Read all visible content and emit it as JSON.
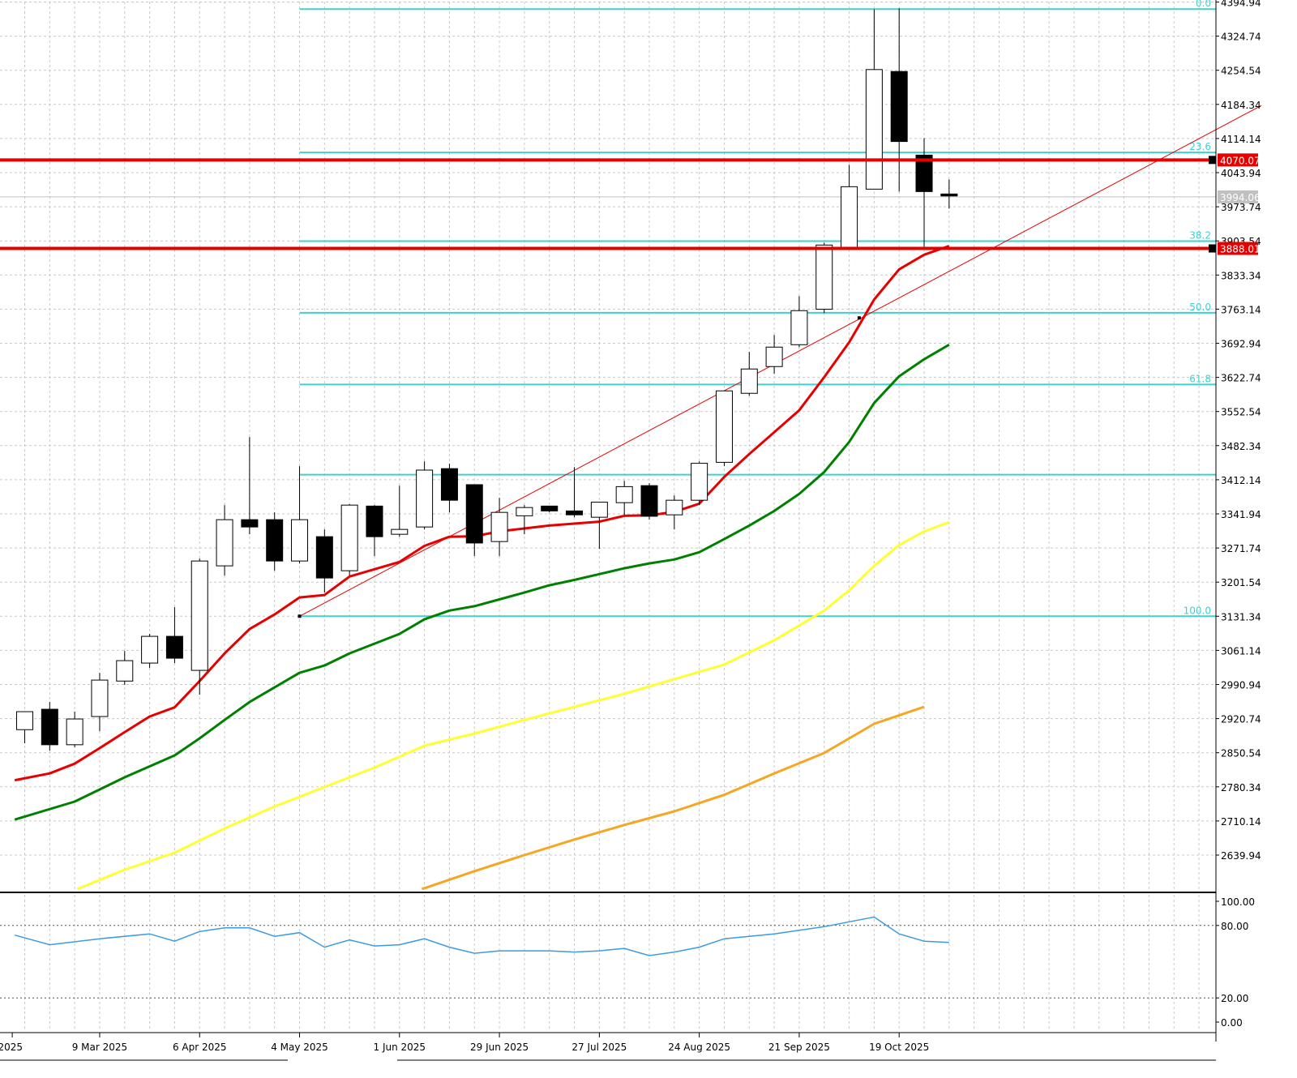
{
  "chart_data": [
    {
      "type": "candlestick",
      "interval": "weekly",
      "y_axis": {
        "range": [
          2569.74,
          4394.94
        ],
        "tick_labels": [
          "4394.94",
          "4324.74",
          "4254.54",
          "4184.34",
          "4114.14",
          "4043.94",
          "3973.74",
          "3903.54",
          "3833.34",
          "3763.14",
          "3692.94",
          "3622.74",
          "3552.54",
          "3482.34",
          "3412.14",
          "3341.94",
          "3271.74",
          "3201.54",
          "3131.34",
          "3061.14",
          "2990.94",
          "2920.74",
          "2850.54",
          "2780.34",
          "2710.14",
          "2639.94"
        ]
      },
      "x_axis": {
        "tick_labels": [
          "2025",
          "9 Mar 2025",
          "6 Apr 2025",
          "4 May 2025",
          "1 Jun 2025",
          "29 Jun 2025",
          "27 Jul 2025",
          "24 Aug 2025",
          "21 Sep 2025",
          "19 Oct 2025"
        ]
      },
      "grid": true,
      "price_labels": [
        {
          "text": "4070.07",
          "value": 4070.07,
          "color": "#e60000"
        },
        {
          "text": "3994.06",
          "value": 3994.06,
          "color": "#c0c0c0"
        },
        {
          "text": "3888.01",
          "value": 3888.01,
          "color": "#e60000"
        }
      ],
      "horizontal_levels": [
        {
          "value": 4070.07,
          "color": "#e60000"
        },
        {
          "value": 3888.01,
          "color": "#e60000"
        }
      ],
      "fibonacci": {
        "start": "4 May 2025",
        "color": "#3fd0d0",
        "levels": [
          {
            "label": "0.0",
            "value": 4380.4
          },
          {
            "label": "23.6",
            "value": 4085.5
          },
          {
            "label": "38.2",
            "value": 3903.1
          },
          {
            "label": "50.0",
            "value": 3755.6
          },
          {
            "label": "61.8",
            "value": 3608.2
          },
          {
            "label": "100.0",
            "value": 3131.4
          }
        ],
        "extra_level": {
          "value": 3422.6
        }
      },
      "trendline": {
        "x_start": 11,
        "y_start": 3131.4,
        "x_end": 49.5,
        "y_end": 4182.0,
        "color": "#e60000"
      },
      "candles": [
        {
          "x": 0,
          "open": 2898,
          "high": 2930,
          "low": 2870,
          "close": 2935
        },
        {
          "x": 1,
          "open": 2940,
          "high": 2955,
          "low": 2855,
          "close": 2867
        },
        {
          "x": 2,
          "open": 2867,
          "high": 2935,
          "low": 2862,
          "close": 2920
        },
        {
          "x": 3,
          "open": 2925,
          "high": 3015,
          "low": 2895,
          "close": 3000
        },
        {
          "x": 4,
          "open": 2998,
          "high": 3060,
          "low": 2990,
          "close": 3040
        },
        {
          "x": 5,
          "open": 3035,
          "high": 3095,
          "low": 3025,
          "close": 3090
        },
        {
          "x": 6,
          "open": 3090,
          "high": 3150,
          "low": 3035,
          "close": 3045
        },
        {
          "x": 7,
          "open": 3020,
          "high": 3250,
          "low": 2970,
          "close": 3245
        },
        {
          "x": 8,
          "open": 3235,
          "high": 3360,
          "low": 3215,
          "close": 3330
        },
        {
          "x": 9,
          "open": 3330,
          "high": 3500,
          "low": 3300,
          "close": 3315
        },
        {
          "x": 10,
          "open": 3330,
          "high": 3345,
          "low": 3225,
          "close": 3245
        },
        {
          "x": 11,
          "open": 3245,
          "high": 3440,
          "low": 3240,
          "close": 3330
        },
        {
          "x": 12,
          "open": 3295,
          "high": 3310,
          "low": 3180,
          "close": 3210
        },
        {
          "x": 13,
          "open": 3225,
          "high": 3362,
          "low": 3215,
          "close": 3360
        },
        {
          "x": 14,
          "open": 3358,
          "high": 3360,
          "low": 3255,
          "close": 3295
        },
        {
          "x": 15,
          "open": 3300,
          "high": 3400,
          "low": 3295,
          "close": 3310
        },
        {
          "x": 16,
          "open": 3315,
          "high": 3450,
          "low": 3310,
          "close": 3432
        },
        {
          "x": 17,
          "open": 3435,
          "high": 3445,
          "low": 3345,
          "close": 3370
        },
        {
          "x": 18,
          "open": 3402,
          "high": 3402,
          "low": 3255,
          "close": 3282
        },
        {
          "x": 19,
          "open": 3285,
          "high": 3375,
          "low": 3255,
          "close": 3345
        },
        {
          "x": 20,
          "open": 3338,
          "high": 3360,
          "low": 3300,
          "close": 3355
        },
        {
          "x": 21,
          "open": 3358,
          "high": 3358,
          "low": 3345,
          "close": 3348
        },
        {
          "x": 22,
          "open": 3348,
          "high": 3438,
          "low": 3335,
          "close": 3340
        },
        {
          "x": 23,
          "open": 3335,
          "high": 3367,
          "low": 3270,
          "close": 3366
        },
        {
          "x": 24,
          "open": 3365,
          "high": 3410,
          "low": 3340,
          "close": 3398
        },
        {
          "x": 25,
          "open": 3400,
          "high": 3405,
          "low": 3330,
          "close": 3337
        },
        {
          "x": 26,
          "open": 3340,
          "high": 3380,
          "low": 3310,
          "close": 3370
        },
        {
          "x": 27,
          "open": 3370,
          "high": 3450,
          "low": 3360,
          "close": 3446
        },
        {
          "x": 28,
          "open": 3448,
          "high": 3590,
          "low": 3440,
          "close": 3595
        },
        {
          "x": 29,
          "open": 3590,
          "high": 3675,
          "low": 3585,
          "close": 3640
        },
        {
          "x": 30,
          "open": 3645,
          "high": 3710,
          "low": 3630,
          "close": 3685
        },
        {
          "x": 31,
          "open": 3690,
          "high": 3790,
          "low": 3685,
          "close": 3760
        },
        {
          "x": 32,
          "open": 3763,
          "high": 3900,
          "low": 3755,
          "close": 3895
        },
        {
          "x": 33,
          "open": 3890,
          "high": 4060,
          "low": 3885,
          "close": 4015
        },
        {
          "x": 34,
          "open": 4010,
          "high": 4380,
          "low": 4010,
          "close": 4256
        },
        {
          "x": 35,
          "open": 4252,
          "high": 4382,
          "low": 4005,
          "close": 4108
        },
        {
          "x": 36,
          "open": 4080,
          "high": 4115,
          "low": 3888,
          "close": 4005
        },
        {
          "x": 37,
          "open": 4000,
          "high": 4030,
          "low": 3970,
          "close": 3996
        }
      ],
      "moving_averages": [
        {
          "color": "#e60000",
          "points": [
            [
              -0.4,
              2794
            ],
            [
              1,
              2808
            ],
            [
              2,
              2828
            ],
            [
              3,
              2860
            ],
            [
              4,
              2893
            ],
            [
              5,
              2925
            ],
            [
              6,
              2944
            ],
            [
              7,
              2998
            ],
            [
              8,
              3055
            ],
            [
              9,
              3105
            ],
            [
              10,
              3135
            ],
            [
              11,
              3170
            ],
            [
              12,
              3175
            ],
            [
              13,
              3213
            ],
            [
              14,
              3228
            ],
            [
              15,
              3243
            ],
            [
              16,
              3276
            ],
            [
              17,
              3295
            ],
            [
              18,
              3296
            ],
            [
              19,
              3306
            ],
            [
              20,
              3312
            ],
            [
              21,
              3318
            ],
            [
              22,
              3322
            ],
            [
              23,
              3326
            ],
            [
              24,
              3338
            ],
            [
              25,
              3339
            ],
            [
              26,
              3346
            ],
            [
              27,
              3363
            ],
            [
              28,
              3418
            ],
            [
              29,
              3465
            ],
            [
              30,
              3510
            ],
            [
              31,
              3555
            ],
            [
              32,
              3623
            ],
            [
              33,
              3695
            ],
            [
              34,
              3783
            ],
            [
              35,
              3845
            ],
            [
              36,
              3875
            ],
            [
              37,
              3893
            ]
          ]
        },
        {
          "color": "#008000",
          "points": [
            [
              -0.4,
              2713
            ],
            [
              2,
              2750
            ],
            [
              4,
              2800
            ],
            [
              6,
              2845
            ],
            [
              7,
              2880
            ],
            [
              8,
              2918
            ],
            [
              9,
              2955
            ],
            [
              10,
              2985
            ],
            [
              11,
              3015
            ],
            [
              12,
              3030
            ],
            [
              13,
              3055
            ],
            [
              14,
              3075
            ],
            [
              15,
              3095
            ],
            [
              16,
              3125
            ],
            [
              17,
              3143
            ],
            [
              18,
              3152
            ],
            [
              19,
              3166
            ],
            [
              20,
              3180
            ],
            [
              21,
              3195
            ],
            [
              22,
              3206
            ],
            [
              23,
              3218
            ],
            [
              24,
              3230
            ],
            [
              25,
              3240
            ],
            [
              26,
              3248
            ],
            [
              27,
              3263
            ],
            [
              28,
              3290
            ],
            [
              29,
              3318
            ],
            [
              30,
              3348
            ],
            [
              31,
              3383
            ],
            [
              32,
              3428
            ],
            [
              33,
              3490
            ],
            [
              34,
              3570
            ],
            [
              35,
              3625
            ],
            [
              36,
              3660
            ],
            [
              37,
              3690
            ]
          ]
        },
        {
          "color": "#ffff33",
          "points": [
            [
              2.1,
              2570
            ],
            [
              4,
              2610
            ],
            [
              6,
              2645
            ],
            [
              8,
              2695
            ],
            [
              10,
              2740
            ],
            [
              12,
              2780
            ],
            [
              14,
              2820
            ],
            [
              16,
              2865
            ],
            [
              18,
              2890
            ],
            [
              20,
              2918
            ],
            [
              22,
              2945
            ],
            [
              24,
              2972
            ],
            [
              26,
              3002
            ],
            [
              28,
              3032
            ],
            [
              30,
              3082
            ],
            [
              32,
              3143
            ],
            [
              33,
              3185
            ],
            [
              34,
              3235
            ],
            [
              35,
              3278
            ],
            [
              36,
              3306
            ],
            [
              37,
              3325
            ]
          ]
        },
        {
          "color": "#f5a623",
          "points": [
            [
              15.9,
              2570
            ],
            [
              18,
              2607
            ],
            [
              20,
              2640
            ],
            [
              22,
              2672
            ],
            [
              24,
              2702
            ],
            [
              26,
              2730
            ],
            [
              28,
              2764
            ],
            [
              30,
              2808
            ],
            [
              32,
              2850
            ],
            [
              33,
              2880
            ],
            [
              34,
              2910
            ],
            [
              36,
              2945
            ]
          ]
        }
      ]
    },
    {
      "type": "line",
      "y_axis": {
        "range": [
          0,
          100
        ],
        "tick_labels": [
          "100.00",
          "80.00",
          "20.00",
          "0.00"
        ]
      },
      "levels": [
        80,
        20
      ],
      "series": [
        {
          "color": "#3c9be0",
          "values": [
            [
              -0.4,
              72
            ],
            [
              1,
              64
            ],
            [
              3,
              69
            ],
            [
              5,
              73
            ],
            [
              6,
              67
            ],
            [
              7,
              75
            ],
            [
              8,
              78
            ],
            [
              9,
              78
            ],
            [
              10,
              71
            ],
            [
              11,
              74
            ],
            [
              12,
              62
            ],
            [
              13,
              68
            ],
            [
              14,
              63
            ],
            [
              15,
              64
            ],
            [
              16,
              69
            ],
            [
              17,
              62
            ],
            [
              18,
              57
            ],
            [
              19,
              59
            ],
            [
              20,
              59
            ],
            [
              21,
              59
            ],
            [
              22,
              58
            ],
            [
              23,
              59
            ],
            [
              24,
              61
            ],
            [
              25,
              55
            ],
            [
              26,
              58
            ],
            [
              27,
              62
            ],
            [
              28,
              69
            ],
            [
              29,
              71
            ],
            [
              30,
              73
            ],
            [
              31,
              76
            ],
            [
              32,
              79
            ],
            [
              33,
              83
            ],
            [
              34,
              87
            ],
            [
              35,
              73
            ],
            [
              36,
              67
            ],
            [
              37,
              66
            ]
          ]
        }
      ]
    }
  ]
}
